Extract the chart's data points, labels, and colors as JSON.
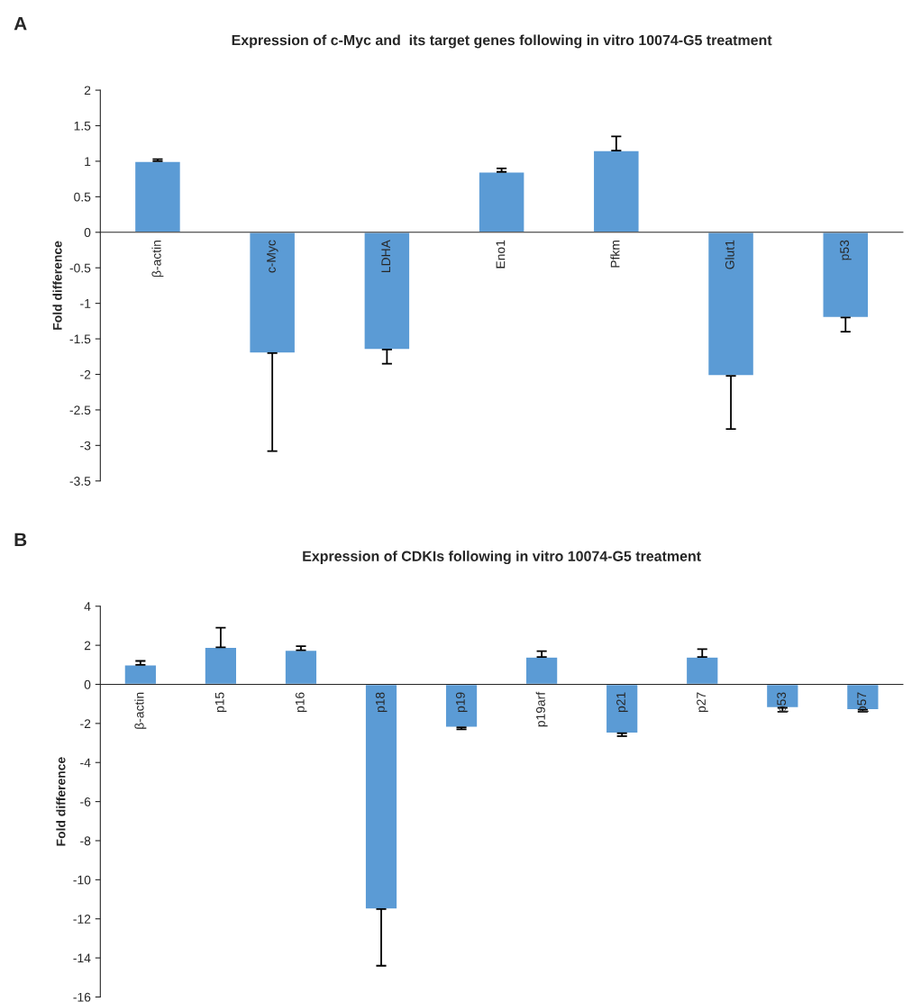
{
  "chart_data": [
    {
      "type": "bar",
      "title": "Expression of c-Myc and  its target genes following in vitro 10074-G5 treatment",
      "ylabel": "Fold difference",
      "annotations": [
        "A"
      ],
      "categories": [
        "β-actin",
        "c-Myc",
        "LDHA",
        "Eno1",
        "Pfkm",
        "Glut1",
        "p53"
      ],
      "values": [
        1.0,
        -1.7,
        -1.65,
        0.85,
        1.15,
        -2.02,
        -1.2
      ],
      "errors": [
        [
          1.0,
          1.03
        ],
        [
          -3.08,
          -1.7
        ],
        [
          -1.85,
          -1.65
        ],
        [
          0.85,
          0.9
        ],
        [
          1.15,
          1.35
        ],
        [
          -2.77,
          -2.02
        ],
        [
          -1.4,
          -1.2
        ]
      ],
      "color": "#5b9bd5",
      "ylim": [
        -3.5,
        2
      ],
      "yticks": [
        {
          "value": -3.5,
          "label": "-3.5"
        },
        {
          "value": -3,
          "label": "-3"
        },
        {
          "value": -2.5,
          "label": "-2.5"
        },
        {
          "value": -2,
          "label": "-2"
        },
        {
          "value": -1.5,
          "label": "-1.5"
        },
        {
          "value": -1,
          "label": "-1"
        },
        {
          "value": -0.5,
          "label": "-0.5"
        },
        0,
        0.5,
        1,
        1.5,
        2
      ],
      "grid": false,
      "legend": false
    },
    {
      "type": "bar",
      "title": "Expression of CDKIs following in vitro 10074-G5 treatment",
      "ylabel": "Fold difference",
      "annotations": [
        "B"
      ],
      "categories": [
        "β-actin",
        "p15",
        "p16",
        "p18",
        "p19",
        "p19arf",
        "p21",
        "p27",
        "p53",
        "p57"
      ],
      "values": [
        1.0,
        1.9,
        1.75,
        -11.5,
        -2.2,
        1.4,
        -2.5,
        1.4,
        -1.2,
        -1.3
      ],
      "errors": [
        [
          1.0,
          1.2
        ],
        [
          1.9,
          2.9
        ],
        [
          1.75,
          1.95
        ],
        [
          -14.4,
          -11.5
        ],
        [
          -2.3,
          -2.2
        ],
        [
          1.4,
          1.7
        ],
        [
          -2.65,
          -2.5
        ],
        [
          1.4,
          1.8
        ],
        [
          -1.4,
          -1.2
        ],
        [
          -1.4,
          -1.3
        ]
      ],
      "color": "#5b9bd5",
      "ylim": [
        -16,
        4
      ],
      "yticks": [
        {
          "value": -16,
          "label": "-16"
        },
        {
          "value": -14,
          "label": "-14"
        },
        {
          "value": -12,
          "label": "-12"
        },
        {
          "value": -10,
          "label": "-10"
        },
        {
          "value": -8,
          "label": "-8"
        },
        {
          "value": -6,
          "label": "-6"
        },
        {
          "value": -4,
          "label": "-4"
        },
        {
          "value": -2,
          "label": "-2"
        },
        0,
        2,
        4
      ],
      "grid": false,
      "legend": false
    }
  ]
}
